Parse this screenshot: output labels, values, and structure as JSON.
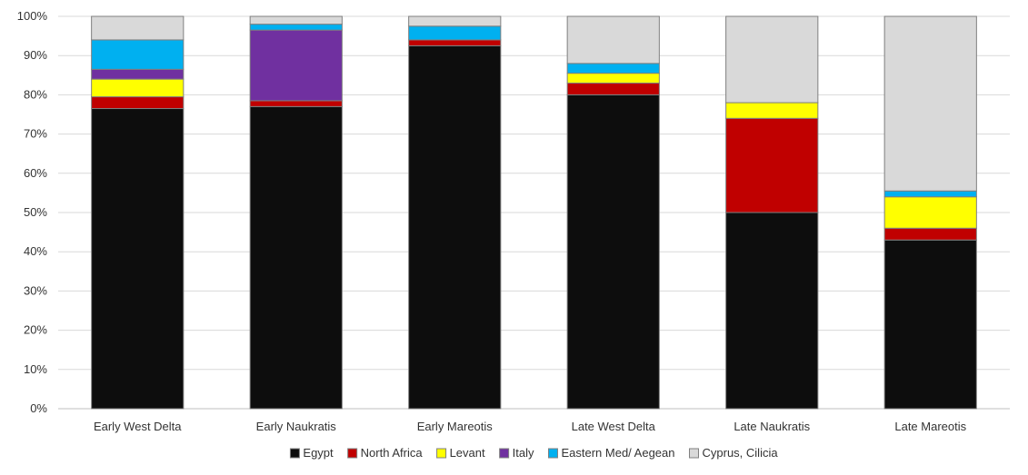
{
  "chart_data": {
    "type": "bar",
    "stacked": true,
    "percent": true,
    "categories": [
      "Early West Delta",
      "Early Naukratis",
      "Early Mareotis",
      "Late West Delta",
      "Late Naukratis",
      "Late Mareotis"
    ],
    "series": [
      {
        "name": "Egypt",
        "color": "#0d0d0d",
        "values": [
          76.5,
          77.0,
          92.5,
          80.0,
          50.0,
          43.0
        ]
      },
      {
        "name": "North Africa",
        "color": "#c00000",
        "values": [
          3.0,
          1.5,
          1.5,
          3.0,
          24.0,
          3.0
        ]
      },
      {
        "name": "Levant",
        "color": "#ffff00",
        "values": [
          4.5,
          0.0,
          0.0,
          2.5,
          4.0,
          8.0
        ]
      },
      {
        "name": "Italy",
        "color": "#7030a0",
        "values": [
          2.5,
          18.0,
          0.0,
          0.0,
          0.0,
          0.0
        ]
      },
      {
        "name": "Eastern Med/ Aegean",
        "color": "#00b0f0",
        "values": [
          7.5,
          1.5,
          3.5,
          2.5,
          0.0,
          1.5
        ]
      },
      {
        "name": "Cyprus, Cilicia",
        "color": "#d9d9d9",
        "values": [
          6.0,
          2.0,
          2.5,
          12.0,
          22.0,
          44.5
        ]
      }
    ],
    "ylim": [
      0,
      100
    ],
    "yticks": [
      "0%",
      "10%",
      "20%",
      "30%",
      "40%",
      "50%",
      "60%",
      "70%",
      "80%",
      "90%",
      "100%"
    ],
    "grid": true,
    "legend_position": "bottom"
  }
}
